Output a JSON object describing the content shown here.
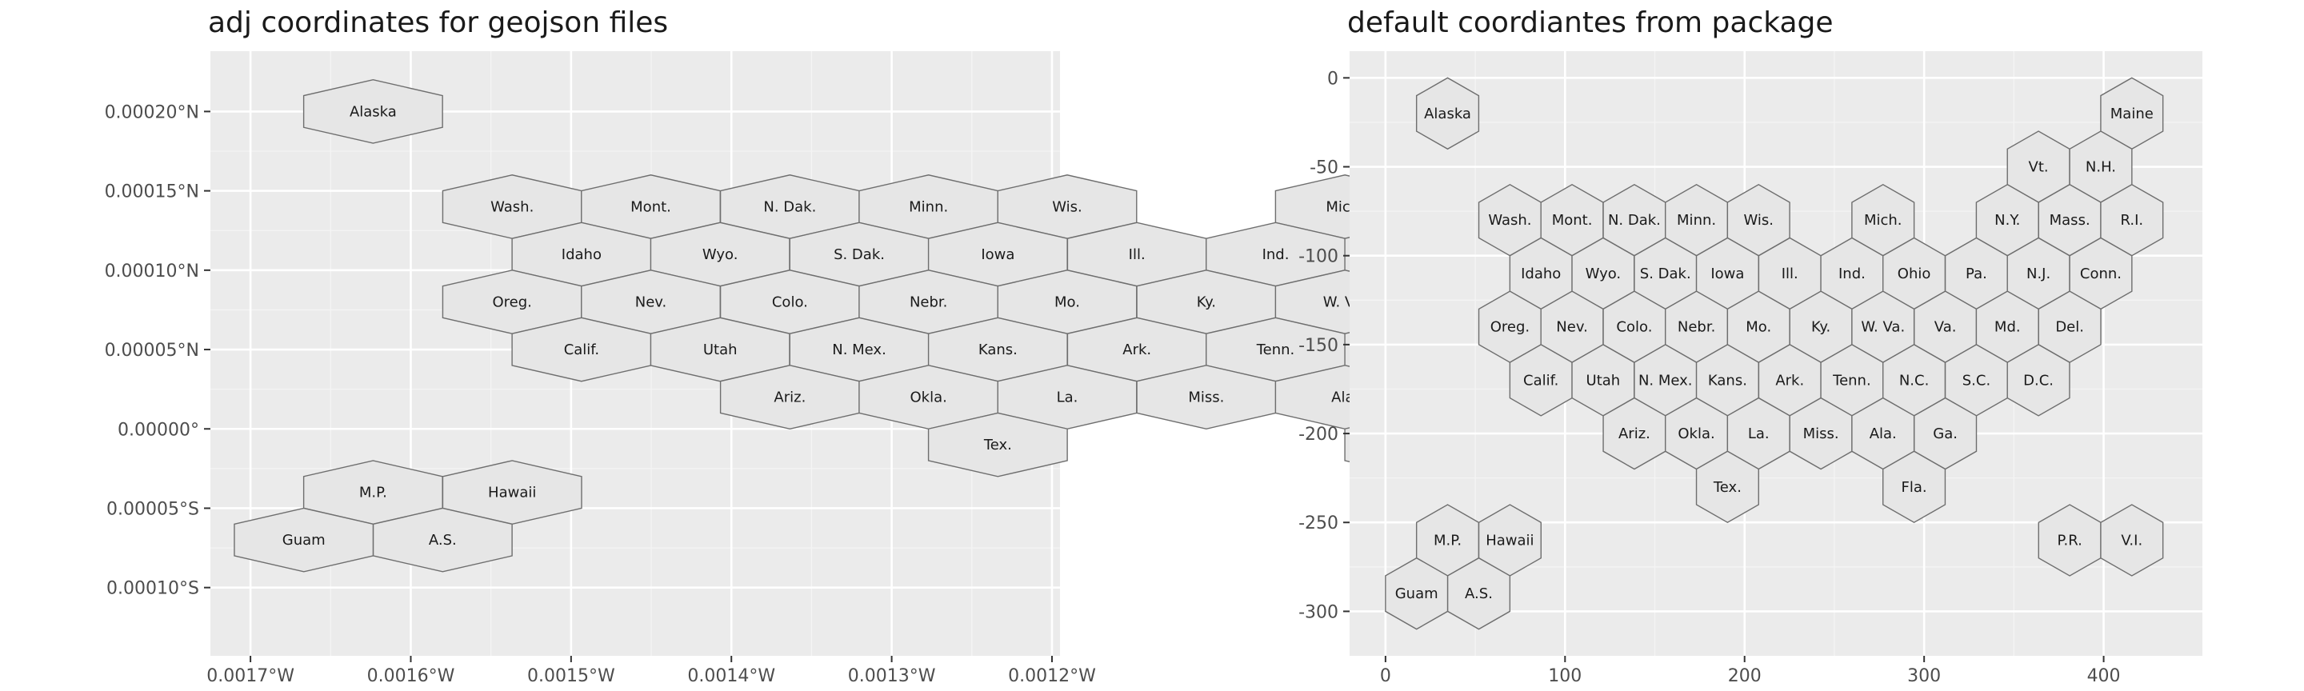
{
  "chart_data": [
    {
      "type": "hexmap",
      "title": "adj coordinates for geojson files",
      "xlim": [
        -0.001725,
        -0.001195
      ],
      "ylim": [
        -0.000143,
        0.000238
      ],
      "x_ticks": [
        {
          "value": -0.0017,
          "label": "0.0017°W"
        },
        {
          "value": -0.0016,
          "label": "0.0016°W"
        },
        {
          "value": -0.0015,
          "label": "0.0015°W"
        },
        {
          "value": -0.0014,
          "label": "0.0014°W"
        },
        {
          "value": -0.0013,
          "label": "0.0013°W"
        },
        {
          "value": -0.0012,
          "label": "0.0012°W"
        }
      ],
      "y_ticks": [
        {
          "value": -0.0001,
          "label": "0.00010°S"
        },
        {
          "value": -5e-05,
          "label": "0.00005°S"
        },
        {
          "value": 0,
          "label": "0.00000°"
        },
        {
          "value": 5e-05,
          "label": "0.00005°N"
        },
        {
          "value": 0.0001,
          "label": "0.00010°N"
        },
        {
          "value": 0.00015,
          "label": "0.00015°N"
        },
        {
          "value": 0.0002,
          "label": "0.00020°N"
        }
      ],
      "grid": true
    },
    {
      "type": "hexmap",
      "title": "default coordiantes from package",
      "xlim": [
        -20,
        455
      ],
      "ylim": [
        -325,
        15
      ],
      "x_ticks": [
        {
          "value": 0,
          "label": "0"
        },
        {
          "value": 100,
          "label": "100"
        },
        {
          "value": 200,
          "label": "200"
        },
        {
          "value": 300,
          "label": "300"
        },
        {
          "value": 400,
          "label": "400"
        }
      ],
      "y_ticks": [
        {
          "value": 0,
          "label": "0"
        },
        {
          "value": -50,
          "label": "-50"
        },
        {
          "value": -100,
          "label": "-100"
        },
        {
          "value": -150,
          "label": "-150"
        },
        {
          "value": -200,
          "label": "-200"
        },
        {
          "value": -250,
          "label": "-250"
        },
        {
          "value": -300,
          "label": "-300"
        }
      ],
      "grid": true
    }
  ],
  "states": [
    {
      "label": "Alaska",
      "x": 34.6,
      "y": -20
    },
    {
      "label": "Maine",
      "x": 415.7,
      "y": -20
    },
    {
      "label": "Vt.",
      "x": 363.7,
      "y": -50
    },
    {
      "label": "N.H.",
      "x": 398.4,
      "y": -50
    },
    {
      "label": "Wash.",
      "x": 69.3,
      "y": -80
    },
    {
      "label": "Mont.",
      "x": 103.9,
      "y": -80
    },
    {
      "label": "N. Dak.",
      "x": 138.6,
      "y": -80
    },
    {
      "label": "Minn.",
      "x": 173.2,
      "y": -80
    },
    {
      "label": "Wis.",
      "x": 207.8,
      "y": -80
    },
    {
      "label": "Mich.",
      "x": 277.1,
      "y": -80
    },
    {
      "label": "N.Y.",
      "x": 346.4,
      "y": -80
    },
    {
      "label": "Mass.",
      "x": 381.1,
      "y": -80
    },
    {
      "label": "R.I.",
      "x": 415.7,
      "y": -80
    },
    {
      "label": "Idaho",
      "x": 86.6,
      "y": -110
    },
    {
      "label": "Wyo.",
      "x": 121.2,
      "y": -110
    },
    {
      "label": "S. Dak.",
      "x": 155.9,
      "y": -110
    },
    {
      "label": "Iowa",
      "x": 190.5,
      "y": -110
    },
    {
      "label": "Ill.",
      "x": 225.2,
      "y": -110
    },
    {
      "label": "Ind.",
      "x": 259.8,
      "y": -110
    },
    {
      "label": "Ohio",
      "x": 294.4,
      "y": -110
    },
    {
      "label": "Pa.",
      "x": 329.1,
      "y": -110
    },
    {
      "label": "N.J.",
      "x": 363.7,
      "y": -110
    },
    {
      "label": "Conn.",
      "x": 398.4,
      "y": -110
    },
    {
      "label": "Oreg.",
      "x": 69.3,
      "y": -140
    },
    {
      "label": "Nev.",
      "x": 103.9,
      "y": -140
    },
    {
      "label": "Colo.",
      "x": 138.6,
      "y": -140
    },
    {
      "label": "Nebr.",
      "x": 173.2,
      "y": -140
    },
    {
      "label": "Mo.",
      "x": 207.8,
      "y": -140
    },
    {
      "label": "Ky.",
      "x": 242.5,
      "y": -140
    },
    {
      "label": "W. Va.",
      "x": 277.1,
      "y": -140
    },
    {
      "label": "Va.",
      "x": 311.8,
      "y": -140
    },
    {
      "label": "Md.",
      "x": 346.4,
      "y": -140
    },
    {
      "label": "Del.",
      "x": 381.1,
      "y": -140
    },
    {
      "label": "Calif.",
      "x": 86.6,
      "y": -170
    },
    {
      "label": "Utah",
      "x": 121.2,
      "y": -170
    },
    {
      "label": "N. Mex.",
      "x": 155.9,
      "y": -170
    },
    {
      "label": "Kans.",
      "x": 190.5,
      "y": -170
    },
    {
      "label": "Ark.",
      "x": 225.2,
      "y": -170
    },
    {
      "label": "Tenn.",
      "x": 259.8,
      "y": -170
    },
    {
      "label": "N.C.",
      "x": 294.4,
      "y": -170
    },
    {
      "label": "S.C.",
      "x": 329.1,
      "y": -170
    },
    {
      "label": "D.C.",
      "x": 363.7,
      "y": -170
    },
    {
      "label": "Ariz.",
      "x": 138.6,
      "y": -200
    },
    {
      "label": "Okla.",
      "x": 173.2,
      "y": -200
    },
    {
      "label": "La.",
      "x": 207.8,
      "y": -200
    },
    {
      "label": "Miss.",
      "x": 242.5,
      "y": -200
    },
    {
      "label": "Ala.",
      "x": 277.1,
      "y": -200
    },
    {
      "label": "Ga.",
      "x": 311.8,
      "y": -200
    },
    {
      "label": "Tex.",
      "x": 190.5,
      "y": -230
    },
    {
      "label": "Fla.",
      "x": 294.4,
      "y": -230
    },
    {
      "label": "M.P.",
      "x": 34.6,
      "y": -260
    },
    {
      "label": "Hawaii",
      "x": 69.3,
      "y": -260
    },
    {
      "label": "P.R.",
      "x": 381.1,
      "y": -260
    },
    {
      "label": "V.I.",
      "x": 415.7,
      "y": -260
    },
    {
      "label": "Guam",
      "x": 17.3,
      "y": -290
    },
    {
      "label": "A.S.",
      "x": 51.96,
      "y": -290
    }
  ],
  "colors": {
    "panel_background": "#ebebeb",
    "grid_major": "#ffffff",
    "hex_fill": "#e6e6e6",
    "hex_stroke": "#6e6e6e",
    "text": "#1a1a1a",
    "axis_text": "#4d4d4d"
  }
}
